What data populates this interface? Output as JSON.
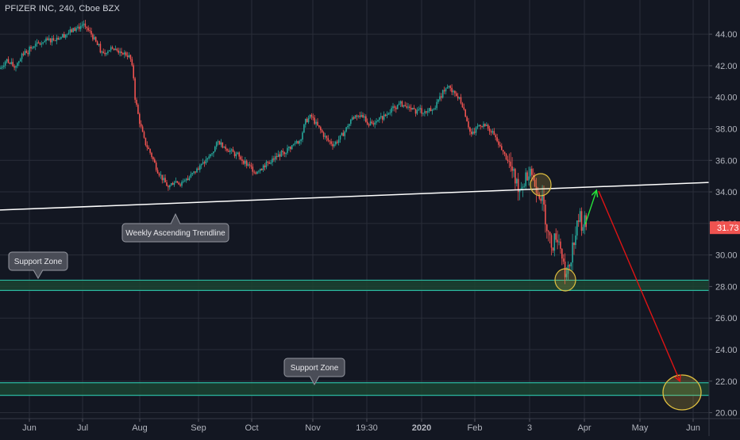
{
  "chart_title": "PFIZER INC, 240, Cboe BZX",
  "chart_data": {
    "type": "candlestick",
    "title": "PFIZER INC, 240, Cboe BZX",
    "ylim": [
      19.6,
      45.6
    ],
    "y_ticks": [
      "20.00",
      "22.00",
      "24.00",
      "26.00",
      "28.00",
      "30.00",
      "32.00",
      "34.00",
      "36.00",
      "38.00",
      "40.00",
      "42.00",
      "44.00"
    ],
    "x_ticks": [
      "Jun",
      "Jul",
      "Aug",
      "Sep",
      "Oct",
      "Nov",
      "19:30",
      "2020",
      "Feb",
      "3",
      "Apr",
      "May",
      "Jun"
    ],
    "last_price": "31.73",
    "price_path": [
      [
        0,
        41.8
      ],
      [
        8,
        42.4
      ],
      [
        18,
        41.9
      ],
      [
        30,
        42.8
      ],
      [
        45,
        43.3
      ],
      [
        60,
        43.6
      ],
      [
        75,
        43.8
      ],
      [
        90,
        44.2
      ],
      [
        105,
        44.6
      ],
      [
        115,
        44.0
      ],
      [
        128,
        42.8
      ],
      [
        140,
        43.1
      ],
      [
        150,
        42.9
      ],
      [
        160,
        42.7
      ],
      [
        164,
        42.5
      ],
      [
        168,
        41.4
      ],
      [
        170,
        40.0
      ],
      [
        175,
        38.6
      ],
      [
        182,
        37.2
      ],
      [
        190,
        36.4
      ],
      [
        198,
        35.4
      ],
      [
        205,
        34.8
      ],
      [
        212,
        34.3
      ],
      [
        220,
        34.7
      ],
      [
        230,
        34.5
      ],
      [
        240,
        35.0
      ],
      [
        250,
        35.5
      ],
      [
        258,
        35.9
      ],
      [
        266,
        36.4
      ],
      [
        275,
        37.2
      ],
      [
        282,
        36.9
      ],
      [
        290,
        36.6
      ],
      [
        298,
        36.3
      ],
      [
        306,
        36.0
      ],
      [
        314,
        35.6
      ],
      [
        322,
        35.3
      ],
      [
        330,
        35.6
      ],
      [
        340,
        35.9
      ],
      [
        350,
        36.3
      ],
      [
        360,
        36.6
      ],
      [
        370,
        37.0
      ],
      [
        378,
        37.3
      ],
      [
        385,
        38.5
      ],
      [
        392,
        38.8
      ],
      [
        398,
        38.3
      ],
      [
        405,
        37.8
      ],
      [
        412,
        37.3
      ],
      [
        420,
        37.0
      ],
      [
        428,
        37.4
      ],
      [
        435,
        37.9
      ],
      [
        442,
        38.6
      ],
      [
        450,
        38.9
      ],
      [
        458,
        38.6
      ],
      [
        466,
        38.3
      ],
      [
        475,
        38.6
      ],
      [
        485,
        38.8
      ],
      [
        495,
        39.3
      ],
      [
        505,
        39.6
      ],
      [
        515,
        39.3
      ],
      [
        525,
        39.1
      ],
      [
        535,
        39.1
      ],
      [
        545,
        39.3
      ],
      [
        552,
        39.7
      ],
      [
        558,
        40.4
      ],
      [
        564,
        40.6
      ],
      [
        570,
        40.4
      ],
      [
        576,
        40.1
      ],
      [
        582,
        39.6
      ],
      [
        588,
        38.6
      ],
      [
        593,
        37.6
      ],
      [
        598,
        37.8
      ],
      [
        604,
        38.3
      ],
      [
        610,
        38.2
      ],
      [
        618,
        37.9
      ],
      [
        625,
        37.3
      ],
      [
        632,
        36.6
      ],
      [
        640,
        36.0
      ],
      [
        645,
        35.3
      ],
      [
        650,
        34.6
      ],
      [
        655,
        34.2
      ],
      [
        660,
        34.6
      ],
      [
        665,
        35.3
      ],
      [
        668,
        35.6
      ],
      [
        672,
        34.6
      ],
      [
        676,
        34.3
      ],
      [
        680,
        33.9
      ],
      [
        684,
        33.3
      ],
      [
        688,
        32.0
      ],
      [
        692,
        31.0
      ],
      [
        696,
        30.6
      ],
      [
        700,
        31.3
      ],
      [
        705,
        30.8
      ],
      [
        710,
        29.3
      ],
      [
        714,
        28.6
      ],
      [
        718,
        29.6
      ],
      [
        722,
        30.8
      ],
      [
        726,
        31.6
      ],
      [
        730,
        32.6
      ],
      [
        733,
        31.8
      ],
      [
        736,
        32.2
      ],
      [
        739,
        31.73
      ]
    ],
    "overlays": {
      "trendline_label": "Weekly Ascending Trendline",
      "support_zone_upper_label": "Support Zone",
      "support_zone_lower_label": "Support Zone",
      "support_zone_upper": [
        27.75,
        28.4
      ],
      "support_zone_lower": [
        21.1,
        21.9
      ],
      "trendline_start": [
        0,
        32.85
      ],
      "trendline_end": [
        893,
        34.6
      ]
    },
    "colors": {
      "background": "#131722",
      "up": "#26a69a",
      "down": "#ef5350",
      "grid": "#2a2e39",
      "axis_text": "#b2b5be",
      "zone_fill": "#1b4331",
      "zone_line": "#2bb8a0",
      "trendline": "#ffffff",
      "arrow_up": "#26e33a",
      "arrow_down": "#e01414",
      "highlight_ellipse": "#e0c040",
      "price_tag": "#ef5350"
    }
  }
}
